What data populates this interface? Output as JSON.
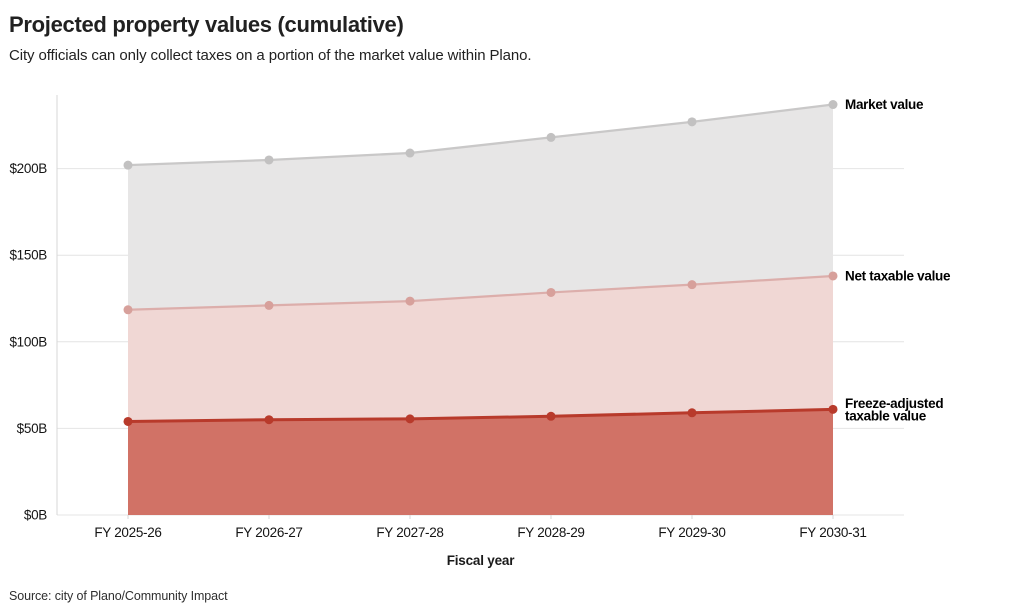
{
  "header": {
    "title": "Projected property values (cumulative)",
    "subtitle": "City officials can only collect taxes on a portion of the market value within Plano."
  },
  "chart_data": {
    "type": "area",
    "title": "Projected property values (cumulative)",
    "subtitle": "City officials can only collect taxes on a portion of the market value within Plano.",
    "categories": [
      "FY 2025-26",
      "FY 2026-27",
      "FY 2027-28",
      "FY 2028-29",
      "FY 2029-30",
      "FY 2030-31"
    ],
    "series": [
      {
        "name": "Market value",
        "label_lines": [
          "Market value"
        ],
        "values": [
          202,
          205,
          209,
          218,
          227,
          237
        ],
        "fill_color": "#e6e5e5",
        "line_color": "#c9c8c8",
        "point_color": "#c2c1c1"
      },
      {
        "name": "Net taxable value",
        "label_lines": [
          "Net taxable value"
        ],
        "values": [
          118.5,
          121,
          123.5,
          128.5,
          133,
          138
        ],
        "fill_color": "#efd6d3",
        "line_color": "#dcaeab",
        "point_color": "#d7a09b"
      },
      {
        "name": "Freeze-adjusted taxable value",
        "label_lines": [
          "Freeze-adjusted",
          "taxable value"
        ],
        "values": [
          54,
          55,
          55.5,
          57,
          59,
          61
        ],
        "fill_color": "#cf6e62",
        "line_color": "#b83a2b",
        "point_color": "#b83a2b"
      }
    ],
    "xlabel": "Fiscal year",
    "ylabel": "",
    "ylim": [
      0,
      242
    ],
    "yticks": [
      0,
      50,
      100,
      150,
      200
    ],
    "ytick_labels": [
      "$0B",
      "$50B",
      "$100B",
      "$150B",
      "$200B"
    ],
    "grid": true,
    "gridline_color": "#e4e4e4",
    "axis_line_color": "#d7d7d7",
    "tick_text_color": "#141414",
    "annotation_text_color": "#000000",
    "legend_position": "right-inline-labels"
  },
  "footer": {
    "source": "Source: city of Plano/Community Impact"
  }
}
